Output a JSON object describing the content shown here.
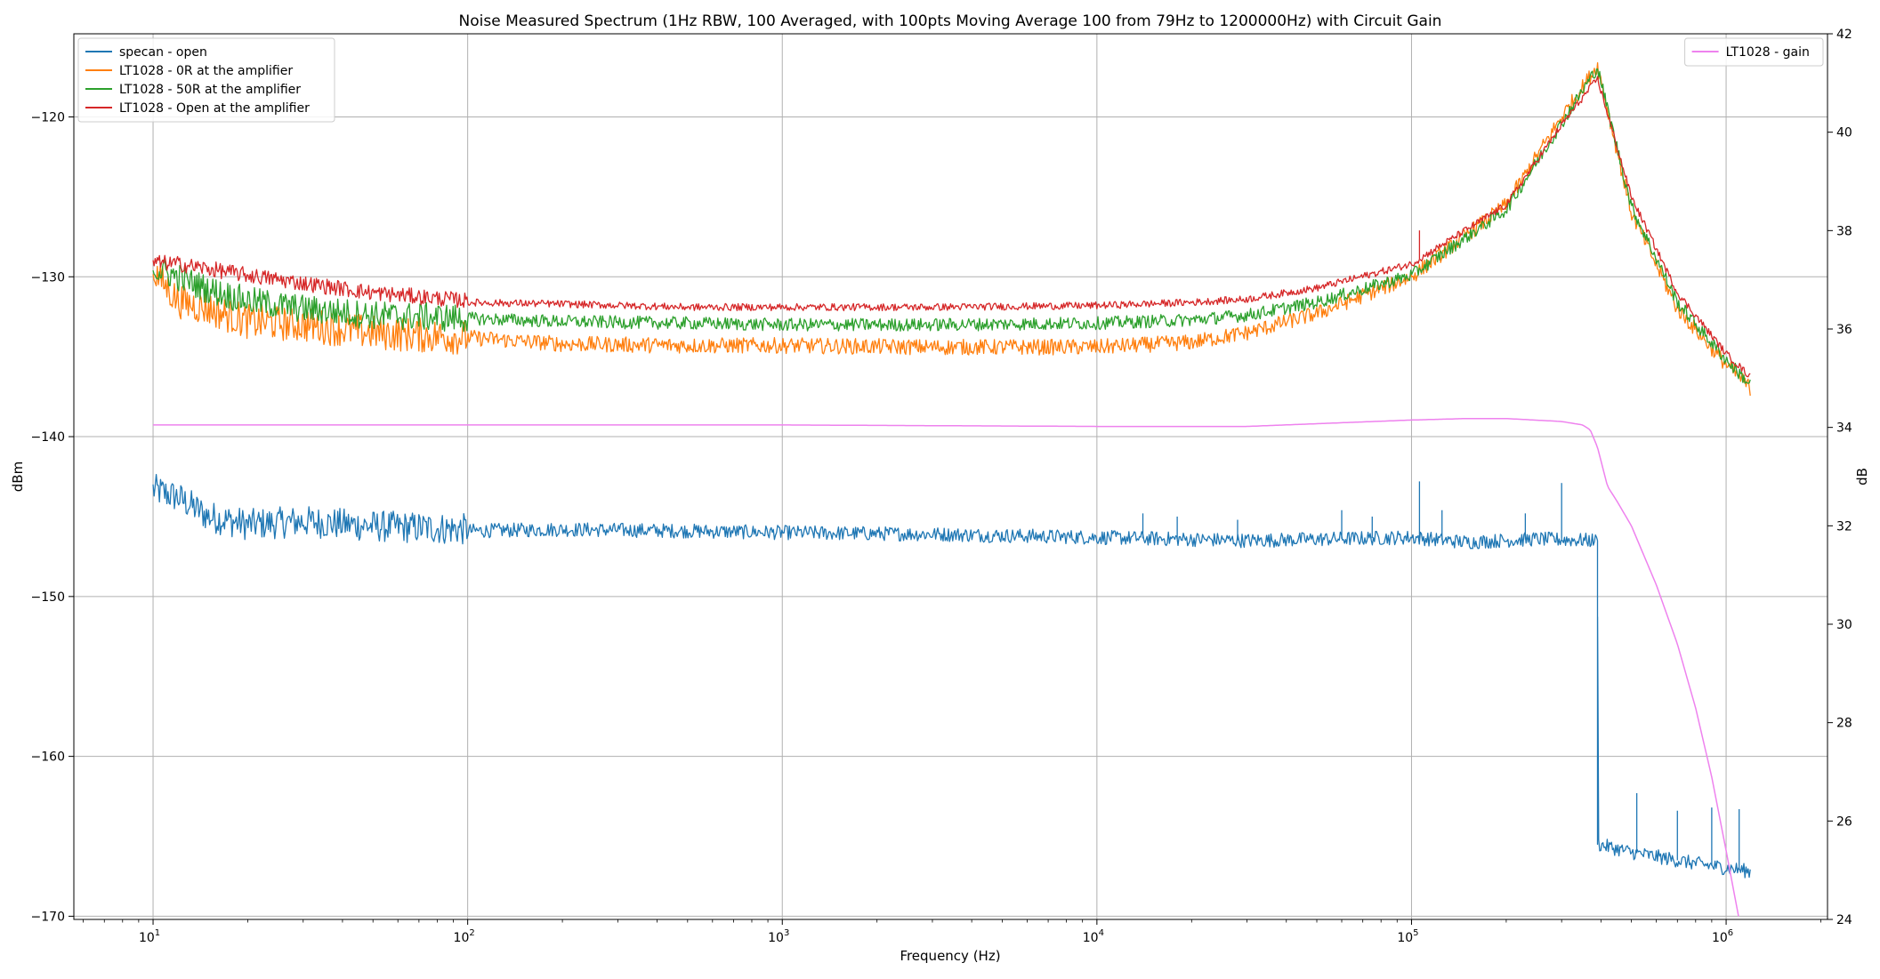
{
  "chart_data": {
    "type": "line",
    "title": "Noise Measured Spectrum (1Hz RBW, 100 Averaged, with 100pts Moving Average 100 from 79Hz to 1200000Hz) with Circuit Gain",
    "xlabel": "Frequency (Hz)",
    "ylabel": "dBm",
    "y2label": "dB",
    "xscale": "log",
    "xlim": [
      5.6,
      2100000
    ],
    "ylim": [
      -170.2,
      -114.8
    ],
    "y2lim": [
      24,
      42
    ],
    "grid": true,
    "x_ticks": [
      {
        "value": 10,
        "base": "10",
        "exp": "1"
      },
      {
        "value": 100,
        "base": "10",
        "exp": "2"
      },
      {
        "value": 1000,
        "base": "10",
        "exp": "3"
      },
      {
        "value": 10000,
        "base": "10",
        "exp": "4"
      },
      {
        "value": 100000,
        "base": "10",
        "exp": "5"
      },
      {
        "value": 1000000,
        "base": "10",
        "exp": "6"
      }
    ],
    "y_ticks": [
      {
        "value": -120,
        "label": "−120"
      },
      {
        "value": -130,
        "label": "−130"
      },
      {
        "value": -140,
        "label": "−140"
      },
      {
        "value": -150,
        "label": "−150"
      },
      {
        "value": -160,
        "label": "−160"
      },
      {
        "value": -170,
        "label": "−170"
      }
    ],
    "y2_ticks": [
      {
        "value": 24,
        "label": "24"
      },
      {
        "value": 26,
        "label": "26"
      },
      {
        "value": 28,
        "label": "28"
      },
      {
        "value": 30,
        "label": "30"
      },
      {
        "value": 32,
        "label": "32"
      },
      {
        "value": 34,
        "label": "34"
      },
      {
        "value": 36,
        "label": "36"
      },
      {
        "value": 38,
        "label": "38"
      },
      {
        "value": 40,
        "label": "40"
      },
      {
        "value": 42,
        "label": "42"
      }
    ],
    "legend_left": {
      "placement": "upper-left"
    },
    "legend_right": {
      "placement": "upper-right"
    },
    "series": [
      {
        "name": "specan - open",
        "axis": "left",
        "color": "#1f77b4",
        "noise": 1.0,
        "x": [
          10,
          12,
          15,
          20,
          30,
          50,
          99,
          100,
          200,
          500,
          1000,
          3000,
          10000,
          30000,
          100000,
          150000,
          250000,
          380000,
          390000,
          392000,
          500000,
          800000,
          1200000
        ],
        "y": [
          -143.3,
          -143.8,
          -145.0,
          -145.5,
          -145.3,
          -145.6,
          -145.8,
          -145.9,
          -145.8,
          -145.9,
          -146.0,
          -146.1,
          -146.3,
          -146.5,
          -146.3,
          -146.6,
          -146.4,
          -146.5,
          -146.5,
          -165.5,
          -166.0,
          -166.7,
          -167.2
        ],
        "spikes": [
          {
            "x": 14000,
            "y": -144.8
          },
          {
            "x": 18000,
            "y": -145.0
          },
          {
            "x": 28000,
            "y": -145.2
          },
          {
            "x": 60000,
            "y": -144.6
          },
          {
            "x": 75000,
            "y": -145.0
          },
          {
            "x": 106000,
            "y": -142.8
          },
          {
            "x": 125000,
            "y": -144.6
          },
          {
            "x": 300000,
            "y": -142.9
          },
          {
            "x": 230000,
            "y": -144.8
          },
          {
            "x": 520000,
            "y": -162.3
          },
          {
            "x": 700000,
            "y": -163.4
          },
          {
            "x": 900000,
            "y": -163.2
          },
          {
            "x": 1100000,
            "y": -163.3
          }
        ]
      },
      {
        "name": "LT1028 - 0R at the amplifier",
        "axis": "left",
        "color": "#ff7f0e",
        "noise": 1.1,
        "x": [
          10,
          12,
          15,
          20,
          30,
          50,
          99,
          100,
          200,
          500,
          1000,
          3000,
          10000,
          20000,
          30000,
          50000,
          100000,
          200000,
          300000,
          390000,
          500000,
          700000,
          1000000,
          1200000
        ],
        "y": [
          -129.6,
          -131.5,
          -132.0,
          -132.8,
          -133.0,
          -133.5,
          -133.8,
          -133.8,
          -134.2,
          -134.3,
          -134.3,
          -134.4,
          -134.4,
          -134.1,
          -133.5,
          -132.3,
          -130.0,
          -125.5,
          -120.0,
          -116.8,
          -126.0,
          -132.0,
          -135.5,
          -137.0
        ]
      },
      {
        "name": "LT1028 - 50R at the amplifier",
        "axis": "left",
        "color": "#2ca02c",
        "noise": 0.9,
        "x": [
          10,
          12,
          15,
          20,
          30,
          50,
          99,
          100,
          200,
          500,
          1000,
          3000,
          10000,
          20000,
          30000,
          50000,
          100000,
          200000,
          300000,
          390000,
          500000,
          700000,
          1000000,
          1200000
        ],
        "y": [
          -129.5,
          -130.0,
          -130.8,
          -131.5,
          -132.0,
          -132.4,
          -132.6,
          -132.6,
          -132.8,
          -132.9,
          -133.0,
          -133.0,
          -132.9,
          -132.7,
          -132.4,
          -131.6,
          -129.9,
          -125.8,
          -120.4,
          -116.9,
          -125.6,
          -131.6,
          -135.2,
          -136.8
        ]
      },
      {
        "name": "LT1028 - Open at the amplifier",
        "axis": "left",
        "color": "#d62728",
        "noise": 0.5,
        "x": [
          10,
          12,
          15,
          20,
          30,
          50,
          99,
          100,
          200,
          500,
          1000,
          3000,
          10000,
          20000,
          30000,
          50000,
          100000,
          200000,
          300000,
          390000,
          500000,
          700000,
          1000000,
          1200000
        ],
        "y": [
          -129.1,
          -129.2,
          -129.5,
          -129.9,
          -130.4,
          -131.0,
          -131.5,
          -131.6,
          -131.7,
          -131.9,
          -131.9,
          -131.9,
          -131.8,
          -131.6,
          -131.4,
          -130.7,
          -129.2,
          -125.5,
          -120.5,
          -117.6,
          -125.0,
          -131.0,
          -134.8,
          -136.3
        ],
        "spikes": [
          {
            "x": 106000,
            "y": -127.1
          },
          {
            "x": 290000,
            "y": -121.0
          }
        ]
      },
      {
        "name": "LT1028 - gain",
        "axis": "right",
        "color": "#ee82ee",
        "noise": 0,
        "x": [
          10,
          100,
          1000,
          10000,
          30000,
          100000,
          150000,
          200000,
          300000,
          350000,
          370000,
          390000,
          420000,
          450000,
          500000,
          600000,
          700000,
          800000,
          900000,
          1000000,
          1100000
        ],
        "y": [
          34.05,
          34.05,
          34.05,
          34.02,
          34.02,
          34.15,
          34.18,
          34.18,
          34.12,
          34.05,
          33.95,
          33.6,
          32.8,
          32.5,
          32.0,
          30.8,
          29.6,
          28.3,
          26.9,
          25.4,
          24.0
        ]
      }
    ]
  }
}
